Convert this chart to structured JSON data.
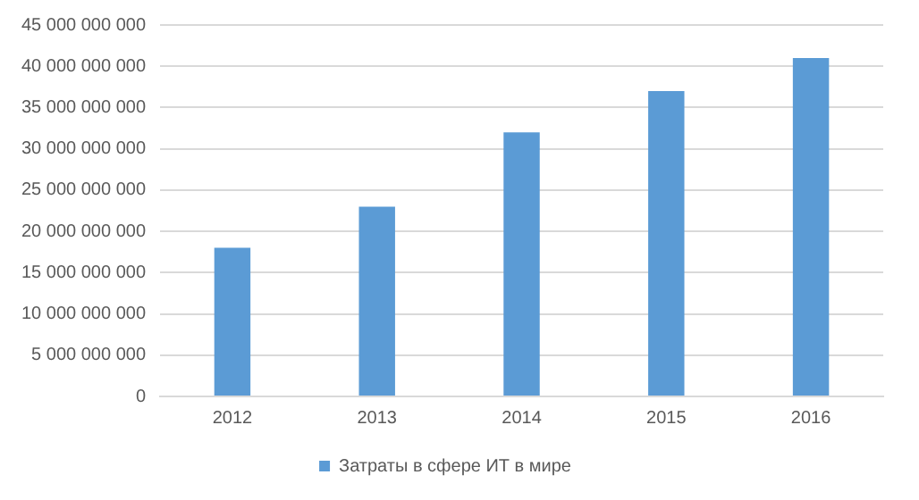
{
  "chart_data": {
    "type": "bar",
    "categories": [
      "2012",
      "2013",
      "2014",
      "2015",
      "2016"
    ],
    "series": [
      {
        "name": "Затраты в сфере ИТ в мире",
        "color": "#5b9bd5",
        "values": [
          18000000000,
          23000000000,
          32000000000,
          37000000000,
          41000000000
        ]
      }
    ],
    "ylim": [
      0,
      45000000000
    ],
    "yticks": [
      {
        "value": 0,
        "label": "0"
      },
      {
        "value": 5000000000,
        "label": "5 000 000 000"
      },
      {
        "value": 10000000000,
        "label": "10 000 000 000"
      },
      {
        "value": 15000000000,
        "label": "15 000 000 000"
      },
      {
        "value": 20000000000,
        "label": "20 000 000 000"
      },
      {
        "value": 25000000000,
        "label": "25 000 000 000"
      },
      {
        "value": 30000000000,
        "label": "30 000 000 000"
      },
      {
        "value": 35000000000,
        "label": "35 000 000 000"
      },
      {
        "value": 40000000000,
        "label": "40 000 000 000"
      },
      {
        "value": 45000000000,
        "label": "45 000 000 000"
      }
    ],
    "grid": "y",
    "legend": "bottom"
  }
}
